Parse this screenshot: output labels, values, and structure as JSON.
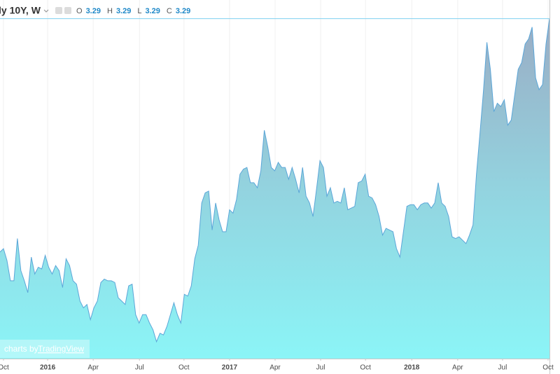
{
  "header": {
    "symbol": "ly 10Y, W",
    "ohlc": [
      {
        "label": "O",
        "value": 3.29
      },
      {
        "label": "H",
        "value": 3.29
      },
      {
        "label": "L",
        "value": 3.29
      },
      {
        "label": "C",
        "value": 3.29
      }
    ]
  },
  "watermark": {
    "prefix": "charts by",
    "brand": "TradingView"
  },
  "chart_data": {
    "type": "area",
    "color": "#5ba6d8",
    "grid": true,
    "xlim": [
      0,
      158
    ],
    "ylim": [
      1.28,
      3.4
    ],
    "xticks": [
      {
        "value": 1.0,
        "label": "Oct"
      },
      {
        "value": 13.7,
        "label": "2016"
      },
      {
        "value": 26.8,
        "label": "Apr"
      },
      {
        "value": 40.1,
        "label": "Jul"
      },
      {
        "value": 52.9,
        "label": "Oct"
      },
      {
        "value": 66.0,
        "label": "2017"
      },
      {
        "value": 79.1,
        "label": "Apr"
      },
      {
        "value": 92.2,
        "label": "Jul"
      },
      {
        "value": 105.1,
        "label": "Oct"
      },
      {
        "value": 118.4,
        "label": "2018"
      },
      {
        "value": 131.6,
        "label": "Apr"
      },
      {
        "value": 144.5,
        "label": "Jul"
      },
      {
        "value": 157.6,
        "label": "Oct"
      }
    ],
    "values": [
      1.91,
      1.93,
      1.86,
      1.74,
      1.74,
      1.99,
      1.8,
      1.74,
      1.67,
      1.88,
      1.78,
      1.82,
      1.81,
      1.89,
      1.82,
      1.78,
      1.83,
      1.8,
      1.7,
      1.87,
      1.83,
      1.74,
      1.72,
      1.62,
      1.58,
      1.6,
      1.51,
      1.58,
      1.62,
      1.73,
      1.75,
      1.74,
      1.74,
      1.73,
      1.64,
      1.62,
      1.6,
      1.71,
      1.72,
      1.54,
      1.49,
      1.54,
      1.54,
      1.49,
      1.45,
      1.38,
      1.43,
      1.42,
      1.47,
      1.54,
      1.61,
      1.54,
      1.49,
      1.66,
      1.65,
      1.71,
      1.87,
      1.95,
      2.2,
      2.26,
      2.27,
      2.04,
      2.2,
      2.1,
      2.03,
      2.03,
      2.16,
      2.14,
      2.22,
      2.37,
      2.4,
      2.41,
      2.32,
      2.32,
      2.29,
      2.39,
      2.63,
      2.53,
      2.41,
      2.39,
      2.44,
      2.41,
      2.41,
      2.34,
      2.41,
      2.34,
      2.26,
      2.41,
      2.24,
      2.2,
      2.12,
      2.28,
      2.45,
      2.41,
      2.24,
      2.29,
      2.2,
      2.21,
      2.2,
      2.29,
      2.16,
      2.17,
      2.18,
      2.32,
      2.33,
      2.37,
      2.24,
      2.23,
      2.19,
      2.12,
      2.01,
      2.05,
      2.04,
      2.03,
      1.93,
      1.88,
      2.03,
      2.18,
      2.19,
      2.19,
      2.16,
      2.19,
      2.2,
      2.2,
      2.17,
      2.2,
      2.32,
      2.2,
      2.18,
      2.12,
      2.0,
      1.99,
      2.0,
      1.98,
      1.96,
      2.01,
      2.07,
      2.37,
      2.61,
      2.86,
      3.15,
      2.99,
      2.74,
      2.79,
      2.77,
      2.81,
      2.66,
      2.69,
      2.84,
      2.99,
      3.03,
      3.14,
      3.17,
      3.24,
      2.94,
      2.87,
      2.9,
      3.14,
      3.29
    ]
  }
}
